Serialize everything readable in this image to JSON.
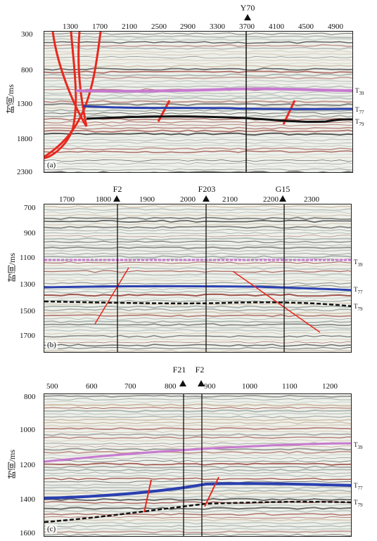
{
  "panels": [
    {
      "id": "a",
      "label": "(a)",
      "xticks": [
        "1300",
        "1700",
        "2100",
        "2500",
        "2900",
        "3300",
        "3700",
        "4100",
        "4500",
        "4900"
      ],
      "yticks": [
        "300",
        "800",
        "1300",
        "1800",
        "2300"
      ],
      "ylabel": "时间/ms",
      "wells": [
        "Y70"
      ],
      "horizons": [
        "T39",
        "T77",
        "T79"
      ]
    },
    {
      "id": "b",
      "label": "(b)",
      "xticks": [
        "1700",
        "1800",
        "1900",
        "2000",
        "2100",
        "2200",
        "2300"
      ],
      "yticks": [
        "700",
        "900",
        "1100",
        "1300",
        "1500",
        "1700"
      ],
      "ylabel": "时间/ms",
      "wells": [
        "F2",
        "F203",
        "G15"
      ],
      "horizons": [
        "T39",
        "T77",
        "T79"
      ]
    },
    {
      "id": "c",
      "label": "(c)",
      "xticks": [
        "500",
        "600",
        "700",
        "800",
        "900",
        "1000",
        "1100",
        "1200"
      ],
      "yticks": [
        "800",
        "1000",
        "1200",
        "1400",
        "1600"
      ],
      "ylabel": "时间/ms",
      "wells": [
        "F21",
        "F2"
      ],
      "horizons": [
        "T39",
        "T77",
        "T79"
      ]
    }
  ],
  "colors": {
    "fault": "#e8281e",
    "t39": "#c77ad0",
    "t77": "#2a3fb0",
    "t79": "#111111"
  }
}
